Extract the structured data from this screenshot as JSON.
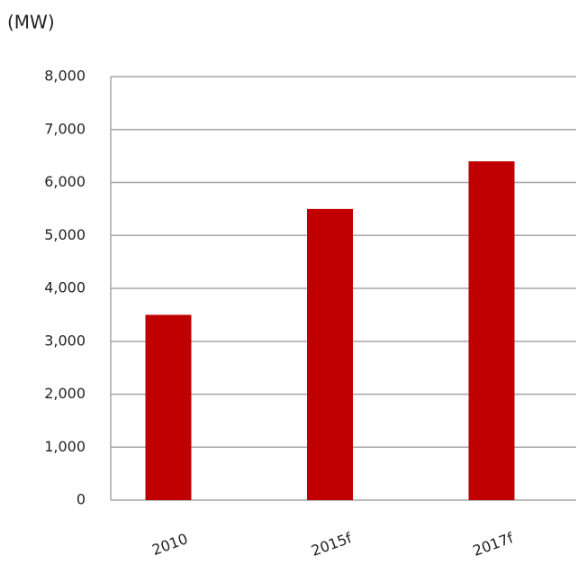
{
  "chart_data": {
    "type": "bar",
    "y_label": "(MW)",
    "categories": [
      "2010",
      "2015f",
      "2017f"
    ],
    "values": [
      3500,
      5500,
      6400
    ],
    "color": "#c00000",
    "ylim": [
      0,
      8000
    ],
    "yticks": [
      0,
      {
        "value": 1000,
        "label": "1,000"
      },
      {
        "value": 2000,
        "label": "2,000"
      },
      {
        "value": 3000,
        "label": "3,000"
      },
      {
        "value": 4000,
        "label": "4,000"
      },
      {
        "value": 5000,
        "label": "5,000"
      },
      {
        "value": 6000,
        "label": "6,000"
      },
      {
        "value": 7000,
        "label": "7,000"
      },
      {
        "value": 8000,
        "label": "8,000"
      }
    ],
    "grid": true
  }
}
